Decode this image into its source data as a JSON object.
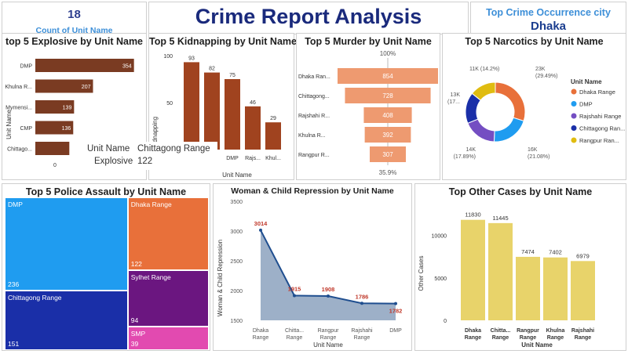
{
  "kpi": {
    "value": "18",
    "label": "Count of Unit Name"
  },
  "title": "Crime Report Analysis",
  "top_city": {
    "label": "Top Crime Occurrence city",
    "value": "Dhaka"
  },
  "explosive": {
    "title": "top 5 Explosive by Unit Name",
    "ylabel": "Unit Name",
    "tooltip": {
      "k1": "Unit Name",
      "v1": "Chittagong Range",
      "k2": "Explosive",
      "v2": "122"
    }
  },
  "kidnapping": {
    "title": "Top 5 Kidnapping by Unit Name",
    "ylabel": "Kidnapping",
    "xlabel": "Unit Name"
  },
  "murder": {
    "title": "Top 5 Murder by Unit Name",
    "top_pct": "100%",
    "bottom_pct": "35.9%"
  },
  "narcotics": {
    "title": "Top 5 Narcotics by Unit Name",
    "legend_title": "Unit Name"
  },
  "assault": {
    "title": "Top 5 Police Assault by Unit Name"
  },
  "repression": {
    "title": "Woman & Child Repression by Unit Name",
    "ylabel": "Woman & Child Repression",
    "xlabel": "Unit Name"
  },
  "other": {
    "title": "Top Other Cases by Unit Name",
    "ylabel": "Other Cases",
    "xlabel": "Unit Name"
  },
  "chart_data": [
    {
      "id": "explosive",
      "type": "bar",
      "orientation": "horizontal",
      "categories": [
        "DMP",
        "Khulna R...",
        "Mymensi...",
        "CMP",
        "Chittago..."
      ],
      "values": [
        354,
        207,
        139,
        136,
        122
      ],
      "xlim": [
        0,
        400
      ],
      "x_ticks": [
        0
      ],
      "color": "#7a3b22",
      "data_labels": [
        "354",
        "207",
        "139",
        "136",
        ""
      ]
    },
    {
      "id": "kidnapping",
      "type": "bar",
      "categories": [
        "",
        "",
        "DMP",
        "Rajs...",
        "Khul..."
      ],
      "values": [
        93,
        82,
        75,
        46,
        29
      ],
      "ylim": [
        0,
        100
      ],
      "y_ticks": [
        0,
        50,
        100
      ],
      "color": "#a0431f"
    },
    {
      "id": "murder",
      "type": "funnel",
      "categories": [
        "Dhaka Ran...",
        "Chittagong...",
        "Rajshahi R...",
        "Khulna R...",
        "Rangpur R..."
      ],
      "values": [
        854,
        728,
        408,
        392,
        307
      ],
      "color": "#ee9a70"
    },
    {
      "id": "narcotics",
      "type": "pie",
      "donut": true,
      "series": [
        {
          "name": "Dhaka Range",
          "value": 23,
          "label": "23K",
          "pct": "(29.49%)",
          "color": "#e8703a"
        },
        {
          "name": "DMP",
          "value": 16,
          "label": "16K",
          "pct": "(21.08%)",
          "color": "#1f9cf0"
        },
        {
          "name": "Rajshahi Range",
          "value": 14,
          "label": "14K",
          "pct": "(17.89%)",
          "color": "#744ec2"
        },
        {
          "name": "Chittagong Ran...",
          "value": 13,
          "label": "13K",
          "pct": "(17...",
          "color": "#1a2fa8"
        },
        {
          "name": "Rangpur Ran...",
          "value": 11,
          "label": "11K (14.2%)",
          "pct": "",
          "color": "#e0bc10"
        }
      ]
    },
    {
      "id": "assault",
      "type": "treemap",
      "categories": [
        "DMP",
        "Chittagong Range",
        "Dhaka Range",
        "Sylhet Range",
        "SMP"
      ],
      "values": [
        236,
        151,
        122,
        94,
        39
      ],
      "colors": [
        "#1f9cf0",
        "#1a2fa8",
        "#e8703a",
        "#6b1680",
        "#e24ab0"
      ]
    },
    {
      "id": "repression",
      "type": "area",
      "categories": [
        "Dhaka Range",
        "Chitta... Range",
        "Rangpur Range",
        "Rajshahi Range",
        "DMP"
      ],
      "values": [
        3014,
        1915,
        1908,
        1786,
        1782
      ],
      "ylim": [
        1500,
        3500
      ],
      "y_ticks": [
        1500,
        2000,
        2500,
        3000,
        3500
      ],
      "color": "#1f4e8f"
    },
    {
      "id": "other",
      "type": "bar",
      "categories": [
        "Dhaka Range",
        "Chitta... Range",
        "Rangpur Range",
        "Khulna Range",
        "Rajshahi Range"
      ],
      "values": [
        11830,
        11445,
        7474,
        7402,
        6979
      ],
      "ylim": [
        0,
        13000
      ],
      "y_ticks": [
        0,
        5000,
        10000
      ],
      "color": "#e8d36a"
    }
  ]
}
